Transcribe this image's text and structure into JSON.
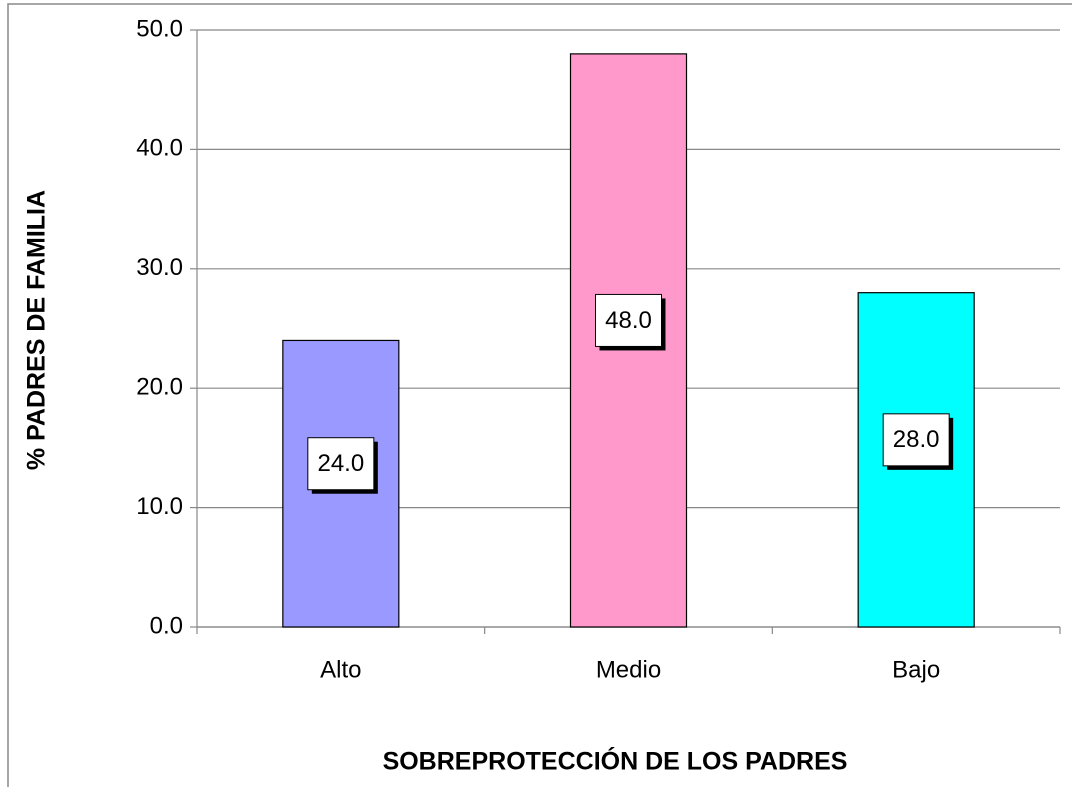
{
  "chart_data": {
    "type": "bar",
    "categories": [
      "Alto",
      "Medio",
      "Bajo"
    ],
    "values": [
      24,
      48,
      28
    ],
    "value_labels": [
      "24.0",
      "48.0",
      "28.0"
    ],
    "colors": [
      "#9999ff",
      "#ff99cc",
      "#00ffff"
    ],
    "ylim": [
      0,
      50
    ],
    "yticks": [
      {
        "value": 0,
        "label": "0.0"
      },
      {
        "value": 10,
        "label": "10.0"
      },
      {
        "value": 20,
        "label": "20.0"
      },
      {
        "value": 30,
        "label": "30.0"
      },
      {
        "value": 40,
        "label": "40.0"
      },
      {
        "value": 50,
        "label": "50.0"
      }
    ],
    "grid": true,
    "xlabel": "SOBREPROTECCIÓN DE LOS PADRES",
    "ylabel": "% PADRES DE FAMILIA"
  }
}
